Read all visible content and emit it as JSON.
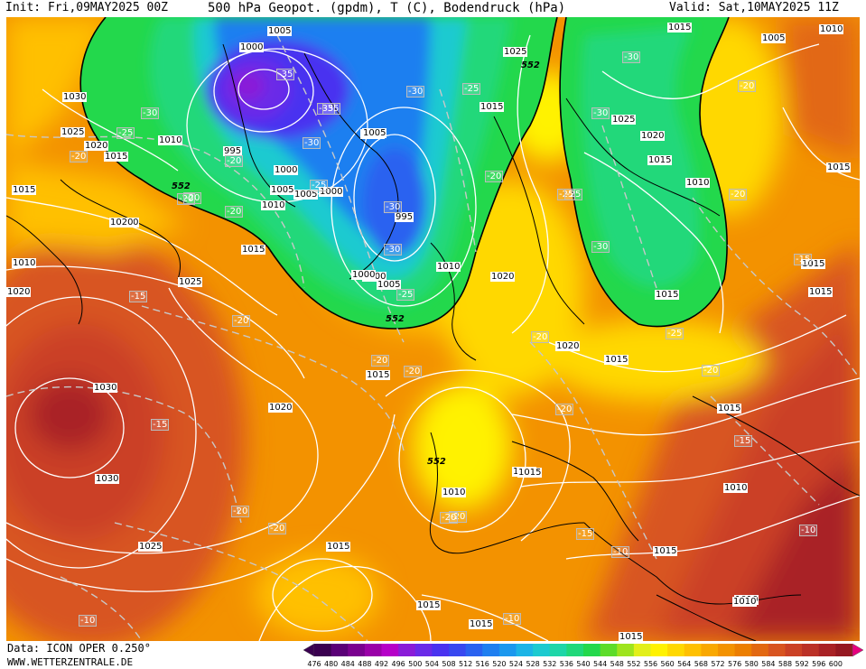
{
  "header": {
    "init_text": "Init: Fri,09MAY2025 00Z",
    "title": "500 hPa Geopot. (gpdm), T (C), Bodendruck (hPa)",
    "valid_text": "Valid: Sat,10MAY2025 11Z"
  },
  "footer": {
    "data_text": "Data: ICON OPER 0.250°",
    "site_text": "WWW.WETTERZENTRALE.DE"
  },
  "legend": {
    "ticks": [
      "476",
      "480",
      "484",
      "488",
      "492",
      "496",
      "500",
      "504",
      "508",
      "512",
      "516",
      "520",
      "524",
      "528",
      "532",
      "536",
      "540",
      "544",
      "548",
      "552",
      "556",
      "560",
      "564",
      "568",
      "572",
      "576",
      "580",
      "584",
      "588",
      "592",
      "596",
      "600"
    ],
    "colors": [
      "#3a0050",
      "#5a0077",
      "#7a008f",
      "#9a00a8",
      "#b600c8",
      "#8a1cd8",
      "#6a2ae8",
      "#4a33f0",
      "#3848f0",
      "#2a62f0",
      "#1f7ff0",
      "#1b98ee",
      "#1cb4e6",
      "#1ccad0",
      "#1ed6a8",
      "#20d87a",
      "#23d84c",
      "#5ddc2a",
      "#9ee41e",
      "#e2ef1a",
      "#fff200",
      "#ffd800",
      "#ffc000",
      "#f9a800",
      "#f39200",
      "#ec7e00",
      "#e26812",
      "#d85420",
      "#cb4125",
      "#bb3127",
      "#a92225",
      "#951821"
    ]
  },
  "map_labels": {
    "isobars": [
      "1030",
      "1025",
      "1020",
      "1015",
      "1010",
      "1015",
      "1010",
      "1005",
      "1020",
      "1015",
      "1020",
      "1005",
      "1000",
      "995",
      "1000",
      "1005",
      "1005",
      "1000",
      "1010",
      "1005",
      "1000",
      "995",
      "1010",
      "1000",
      "1005",
      "1015",
      "1025",
      "1015",
      "1025",
      "1020",
      "1015",
      "1010",
      "1015",
      "1015",
      "1020",
      "1020",
      "1020",
      "1015",
      "1015",
      "1030",
      "1030",
      "1020",
      "1025",
      "1015",
      "1015",
      "1010",
      "1010",
      "1015",
      "1010",
      "1015",
      "1015",
      "1015",
      "1015",
      "1005",
      "1010",
      "1015",
      "1015",
      "1015",
      "1010",
      "1025"
    ],
    "temps": [
      "-30",
      "-25",
      "-20",
      "-20",
      "-35",
      "-35",
      "-30",
      "-20",
      "-25",
      "-30",
      "-30",
      "-35",
      "-25",
      "-20",
      "-20",
      "-25",
      "-30",
      "-30",
      "-25",
      "-20",
      "-25",
      "-30",
      "-30",
      "-20",
      "-20",
      "-25",
      "-15",
      "-20",
      "-15",
      "-20",
      "-20",
      "-20",
      "-20",
      "-20",
      "-20",
      "-15",
      "-15",
      "-15",
      "-10",
      "-10",
      "-10",
      "-10",
      "-20",
      "-20",
      "-20"
    ],
    "height_552": [
      "552",
      "552",
      "552",
      "552"
    ]
  }
}
